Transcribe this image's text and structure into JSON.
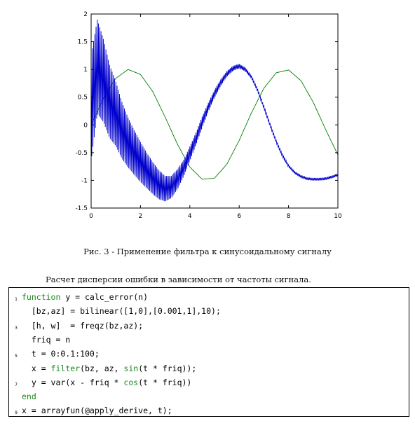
{
  "chart_data": {
    "type": "line",
    "xlim": [
      0,
      10
    ],
    "ylim": [
      -1.5,
      2
    ],
    "xticks": [
      "0",
      "2",
      "4",
      "6",
      "8",
      "10"
    ],
    "yticks": [
      "-1.5",
      "-1",
      "-0.5",
      "0",
      "0.5",
      "1",
      "1.5",
      "2"
    ],
    "grid": false,
    "series": [
      {
        "color": "#008000",
        "x": [
          0,
          0.5,
          1,
          1.5,
          2,
          2.5,
          3,
          3.5,
          4,
          4.5,
          5,
          5.5,
          6,
          6.5,
          7,
          7.5,
          8,
          8.5,
          9,
          9.5,
          10
        ],
        "y": [
          0,
          0.48,
          0.84,
          1.0,
          0.91,
          0.6,
          0.14,
          -0.35,
          -0.76,
          -0.98,
          -0.96,
          -0.71,
          -0.28,
          0.22,
          0.66,
          0.94,
          0.99,
          0.8,
          0.41,
          -0.08,
          -0.54
        ]
      },
      {
        "color": "#0000cc",
        "x": [
          0,
          0.25,
          0.5,
          0.75,
          1,
          1.25,
          1.5,
          1.75,
          2,
          2.25,
          2.5,
          2.75,
          3,
          3.25,
          3.5,
          3.75,
          4,
          4.25,
          4.5,
          4.75,
          5,
          5.25,
          5.5,
          5.75,
          6,
          6.25,
          6.5,
          6.75,
          7,
          7.25,
          7.5,
          7.75,
          8,
          8.25,
          8.5,
          8.75,
          9,
          9.25,
          9.5,
          9.75,
          10
        ],
        "y": [
          0.3,
          1.05,
          0.8,
          0.42,
          0.2,
          -0.1,
          -0.32,
          -0.5,
          -0.67,
          -0.82,
          -0.96,
          -1.08,
          -1.15,
          -1.12,
          -0.98,
          -0.78,
          -0.52,
          -0.25,
          0.05,
          0.32,
          0.56,
          0.76,
          0.92,
          1.02,
          1.06,
          1.0,
          0.86,
          0.62,
          0.32,
          0.0,
          -0.3,
          -0.55,
          -0.74,
          -0.86,
          -0.93,
          -0.97,
          -0.98,
          -0.98,
          -0.97,
          -0.94,
          -0.9
        ],
        "oscillation_amplitude": [
          0.95,
          0.85,
          0.75,
          0.66,
          0.58,
          0.51,
          0.45,
          0.4,
          0.36,
          0.32,
          0.29,
          0.26,
          0.23,
          0.2,
          0.18,
          0.15,
          0.13,
          0.11,
          0.1,
          0.08,
          0.07,
          0.06,
          0.05,
          0.045,
          0.04,
          0.035,
          0.03,
          0.03,
          0.028,
          0.026,
          0.025,
          0.025,
          0.024,
          0.024,
          0.024,
          0.023,
          0.023,
          0.023,
          0.023,
          0.023,
          0.023
        ]
      }
    ]
  },
  "caption": "Рис. 3 - Применение фильтра к синусоидальному сигналу",
  "paragraph": "Расчет дисперсии ошибки в зависимости от частоты сигнала.",
  "code": {
    "line_numbers": [
      "1",
      "3",
      "5",
      "7",
      "9"
    ],
    "lines": [
      "function y = calc_error(n)",
      "  [bz,az] = bilinear([1,0],[0.001,1],10);",
      "  [h, w]  = freqz(bz,az);",
      "  friq = n",
      "  t = 0:0.1:100;",
      "  x = filter(bz, az, sin(t * friq));",
      "  y = var(x - friq * cos(t * friq))",
      "end",
      "x = arrayfun(@apply_derive, t);"
    ],
    "keywords": [
      "function",
      "filter",
      "sin",
      "cos",
      "end"
    ],
    "keyword_color": "#1a8a1a"
  }
}
